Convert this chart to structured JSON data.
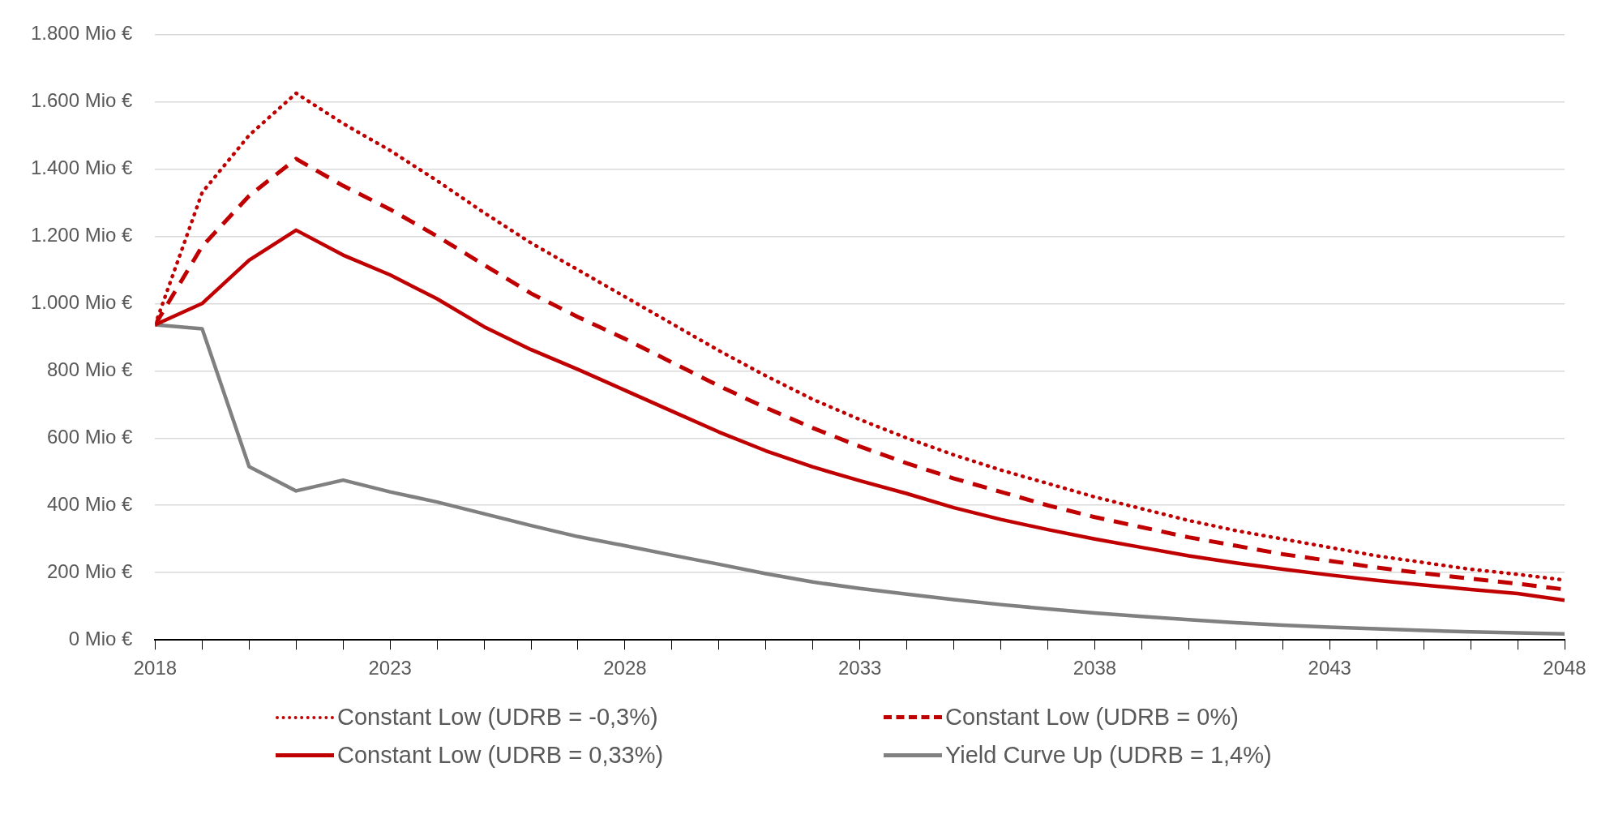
{
  "chart_data": {
    "type": "line",
    "x": [
      2018,
      2019,
      2020,
      2021,
      2022,
      2023,
      2024,
      2025,
      2026,
      2027,
      2028,
      2029,
      2030,
      2031,
      2032,
      2033,
      2034,
      2035,
      2036,
      2037,
      2038,
      2039,
      2040,
      2041,
      2042,
      2043,
      2044,
      2045,
      2046,
      2047,
      2048
    ],
    "series": [
      {
        "name": "Constant Low (UDRB = -0,3%)",
        "color": "#c00000",
        "line_style": "dotted",
        "values": [
          937,
          1330,
          1500,
          1625,
          1535,
          1455,
          1365,
          1270,
          1180,
          1100,
          1020,
          940,
          860,
          785,
          715,
          655,
          600,
          550,
          505,
          465,
          425,
          390,
          355,
          325,
          300,
          275,
          250,
          230,
          210,
          195,
          178
        ]
      },
      {
        "name": "Constant Low (UDRB = 0%)",
        "color": "#c00000",
        "line_style": "dashed",
        "values": [
          937,
          1170,
          1320,
          1430,
          1350,
          1280,
          1200,
          1115,
          1030,
          960,
          895,
          825,
          755,
          690,
          630,
          575,
          525,
          480,
          440,
          400,
          365,
          335,
          305,
          280,
          255,
          235,
          215,
          198,
          182,
          167,
          150
        ]
      },
      {
        "name": "Constant Low (UDRB = 0,33%)",
        "color": "#c00000",
        "line_style": "solid",
        "values": [
          937,
          1000,
          1129,
          1218,
          1144,
          1085,
          1014,
          931,
          863,
          804,
          742,
          680,
          618,
          562,
          514,
          473,
          435,
          393,
          358,
          328,
          300,
          275,
          250,
          229,
          210,
          193,
          177,
          163,
          150,
          138,
          118
        ]
      },
      {
        "name": "Yield Curve Up (UDRB = 1,4%)",
        "color": "#808080",
        "line_style": "solid",
        "values": [
          937,
          925,
          515,
          443,
          475,
          440,
          410,
          375,
          340,
          307,
          280,
          252,
          225,
          197,
          172,
          153,
          136,
          120,
          105,
          92,
          80,
          70,
          60,
          51,
          44,
          38,
          33,
          28,
          24,
          21,
          18
        ]
      }
    ],
    "xlim": [
      2018,
      2048
    ],
    "xticks": [
      2018,
      {
        "value": 2019,
        "label": null
      },
      {
        "value": 2020,
        "label": null
      },
      {
        "value": 2021,
        "label": null
      },
      {
        "value": 2022,
        "label": null
      },
      2023,
      {
        "value": 2024,
        "label": null
      },
      {
        "value": 2025,
        "label": null
      },
      {
        "value": 2026,
        "label": null
      },
      {
        "value": 2027,
        "label": null
      },
      2028,
      {
        "value": 2029,
        "label": null
      },
      {
        "value": 2030,
        "label": null
      },
      {
        "value": 2031,
        "label": null
      },
      {
        "value": 2032,
        "label": null
      },
      2033,
      {
        "value": 2034,
        "label": null
      },
      {
        "value": 2035,
        "label": null
      },
      {
        "value": 2036,
        "label": null
      },
      {
        "value": 2037,
        "label": null
      },
      2038,
      {
        "value": 2039,
        "label": null
      },
      {
        "value": 2040,
        "label": null
      },
      {
        "value": 2041,
        "label": null
      },
      {
        "value": 2042,
        "label": null
      },
      2043,
      {
        "value": 2044,
        "label": null
      },
      {
        "value": 2045,
        "label": null
      },
      {
        "value": 2046,
        "label": null
      },
      {
        "value": 2047,
        "label": null
      },
      2048
    ],
    "ylim": [
      0,
      1800
    ],
    "yticks": [
      {
        "value": 0,
        "label": "0 Mio €"
      },
      {
        "value": 200,
        "label": "200 Mio €"
      },
      {
        "value": 400,
        "label": "400 Mio €"
      },
      {
        "value": 600,
        "label": "600 Mio €"
      },
      {
        "value": 800,
        "label": "800 Mio €"
      },
      {
        "value": 1000,
        "label": "1.000 Mio €"
      },
      {
        "value": 1200,
        "label": "1.200 Mio €"
      },
      {
        "value": 1400,
        "label": "1.400 Mio €"
      },
      {
        "value": 1600,
        "label": "1.600 Mio €"
      },
      {
        "value": 1800,
        "label": "1.800 Mio €"
      }
    ],
    "grid": "y",
    "legend": "bottom",
    "marker": "none"
  }
}
